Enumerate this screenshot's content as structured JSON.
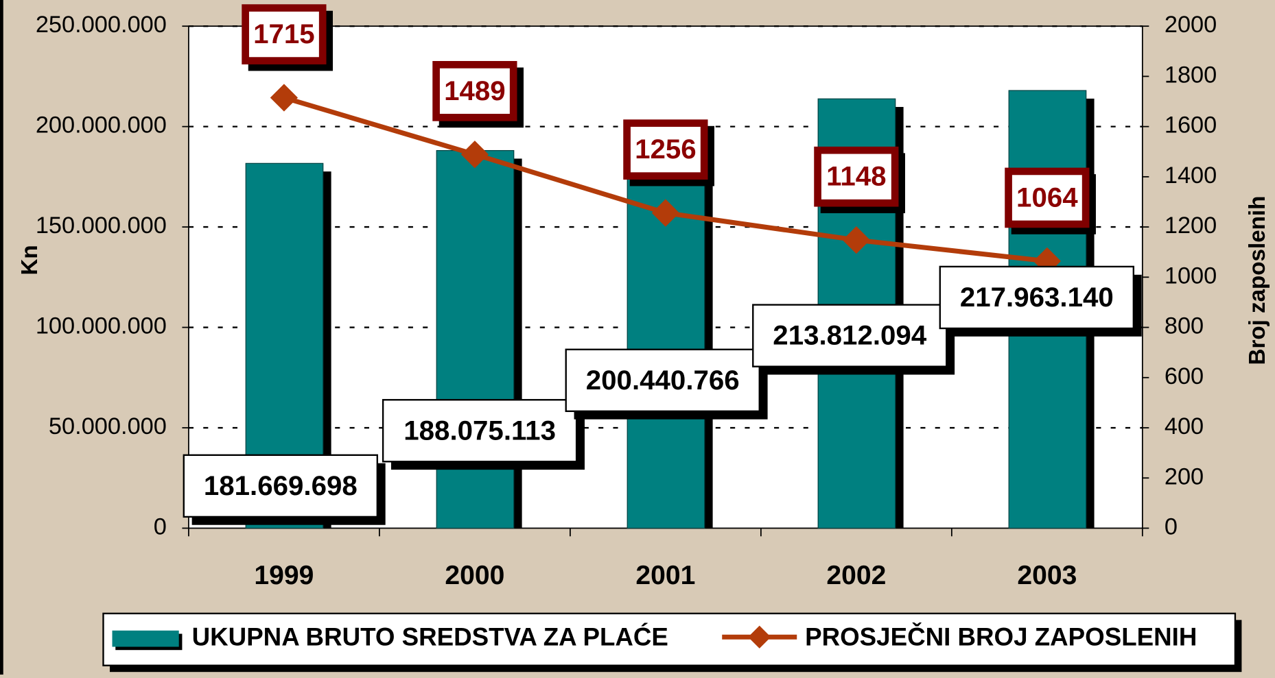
{
  "chart_data": {
    "type": "bar-line",
    "categories": [
      "1999",
      "2000",
      "2001",
      "2002",
      "2003"
    ],
    "series": [
      {
        "name": "UKUPNA BRUTO SREDSTVA ZA PLAĆE",
        "type": "bar",
        "color": "#008080",
        "values": [
          181669698,
          188075113,
          200440766,
          213812094,
          217963140
        ],
        "value_labels": [
          "181.669.698",
          "188.075.113",
          "200.440.766",
          "213.812.094",
          "217.963.140"
        ]
      },
      {
        "name": "PROSJEČNI BROJ ZAPOSLENIH",
        "type": "line",
        "axis": "y2",
        "color": "#b33c0a",
        "values": [
          1715,
          1489,
          1256,
          1148,
          1064
        ]
      }
    ],
    "ylabel": "Kn",
    "y2label": "Broj zaposlenih",
    "ylim": [
      0,
      250000000
    ],
    "yticks": [
      0,
      {
        "value": 50000000,
        "label": "50.000.000"
      },
      {
        "value": 100000000,
        "label": "100.000.000"
      },
      {
        "value": 150000000,
        "label": "150.000.000"
      },
      {
        "value": 200000000,
        "label": "200.000.000"
      },
      {
        "value": 250000000,
        "label": "250.000.000"
      }
    ],
    "y2lim": [
      0,
      2000
    ],
    "y2ticks": [
      0,
      200,
      400,
      600,
      800,
      1000,
      1200,
      1400,
      1600,
      1800,
      2000
    ],
    "grid": true,
    "legend": "bottom"
  }
}
